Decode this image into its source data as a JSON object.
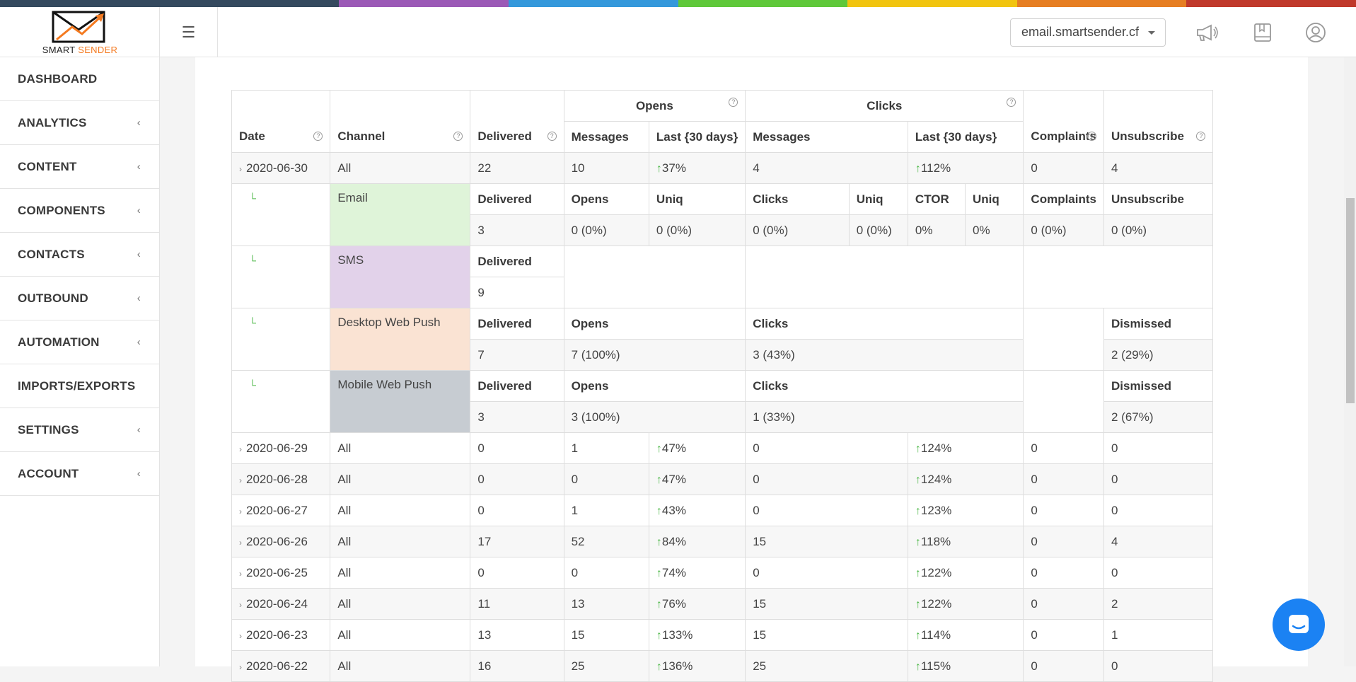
{
  "colors": {
    "accent": "#f47a20",
    "green": "#4db848",
    "chat": "#1b82f3",
    "stripe": [
      "#34495e",
      "#34495e",
      "#9b59b6",
      "#3498db",
      "#5fc83a",
      "#f1c40f",
      "#e67e22",
      "#c0392b"
    ]
  },
  "logo": {
    "brand_part1": "SMART",
    "brand_part2": "SENDER"
  },
  "header": {
    "domain": "email.smartsender.cf",
    "icons": [
      "megaphone-icon",
      "book-icon",
      "user-icon"
    ]
  },
  "sidebar": {
    "items": [
      {
        "label": "DASHBOARD",
        "chevron": false
      },
      {
        "label": "ANALYTICS",
        "chevron": true
      },
      {
        "label": "CONTENT",
        "chevron": true
      },
      {
        "label": "COMPONENTS",
        "chevron": true
      },
      {
        "label": "CONTACTS",
        "chevron": true
      },
      {
        "label": "OUTBOUND",
        "chevron": true
      },
      {
        "label": "AUTOMATION",
        "chevron": true
      },
      {
        "label": "IMPORTS/EXPORTS",
        "chevron": false
      },
      {
        "label": "SETTINGS",
        "chevron": true
      },
      {
        "label": "ACCOUNT",
        "chevron": true
      }
    ]
  },
  "table": {
    "headers": {
      "date": "Date",
      "channel": "Channel",
      "delivered": "Delivered",
      "opens": "Opens",
      "clicks": "Clicks",
      "messages": "Messages",
      "last30": "Last {30 days}",
      "complaints": "Complaints",
      "unsubscribe": "Unsubscribe"
    },
    "first_row": {
      "date": "2020-06-30",
      "channel": "All",
      "delivered": "22",
      "opens_messages": "10",
      "opens_last": "37%",
      "clicks_messages": "4",
      "clicks_last": "112%",
      "complaints": "0",
      "unsubscribe": "4"
    },
    "email": {
      "name": "Email",
      "labels": {
        "delivered": "Delivered",
        "opens": "Opens",
        "uniq": "Uniq",
        "clicks": "Clicks",
        "ctor": "CTOR",
        "complaints": "Complaints",
        "unsubscribe": "Unsubscribe"
      },
      "values": {
        "delivered": "3",
        "opens": "0 (0%)",
        "opens_uniq": "0 (0%)",
        "clicks": "0 (0%)",
        "clicks_uniq": "0 (0%)",
        "ctor": "0%",
        "ctor_uniq": "0%",
        "complaints": "0 (0%)",
        "unsubscribe": "0 (0%)"
      }
    },
    "sms": {
      "name": "SMS",
      "label": "Delivered",
      "delivered": "9"
    },
    "desktop": {
      "name": "Desktop Web Push",
      "labels": {
        "delivered": "Delivered",
        "opens": "Opens",
        "clicks": "Clicks",
        "dismissed": "Dismissed"
      },
      "values": {
        "delivered": "7",
        "opens": "7 (100%)",
        "clicks": "3 (43%)",
        "dismissed": "2 (29%)"
      }
    },
    "mobile": {
      "name": "Mobile Web Push",
      "labels": {
        "delivered": "Delivered",
        "opens": "Opens",
        "clicks": "Clicks",
        "dismissed": "Dismissed"
      },
      "values": {
        "delivered": "3",
        "opens": "3 (100%)",
        "clicks": "1 (33%)",
        "dismissed": "2 (67%)"
      }
    },
    "rows": [
      {
        "date": "2020-06-29",
        "channel": "All",
        "delivered": "0",
        "opens": "1",
        "opens_last": "47%",
        "clicks": "0",
        "clicks_last": "124%",
        "complaints": "0",
        "unsubscribe": "0"
      },
      {
        "date": "2020-06-28",
        "channel": "All",
        "delivered": "0",
        "opens": "0",
        "opens_last": "47%",
        "clicks": "0",
        "clicks_last": "124%",
        "complaints": "0",
        "unsubscribe": "0"
      },
      {
        "date": "2020-06-27",
        "channel": "All",
        "delivered": "0",
        "opens": "1",
        "opens_last": "43%",
        "clicks": "0",
        "clicks_last": "123%",
        "complaints": "0",
        "unsubscribe": "0"
      },
      {
        "date": "2020-06-26",
        "channel": "All",
        "delivered": "17",
        "opens": "52",
        "opens_last": "84%",
        "clicks": "15",
        "clicks_last": "118%",
        "complaints": "0",
        "unsubscribe": "4"
      },
      {
        "date": "2020-06-25",
        "channel": "All",
        "delivered": "0",
        "opens": "0",
        "opens_last": "74%",
        "clicks": "0",
        "clicks_last": "122%",
        "complaints": "0",
        "unsubscribe": "0"
      },
      {
        "date": "2020-06-24",
        "channel": "All",
        "delivered": "11",
        "opens": "13",
        "opens_last": "76%",
        "clicks": "15",
        "clicks_last": "122%",
        "complaints": "0",
        "unsubscribe": "2"
      },
      {
        "date": "2020-06-23",
        "channel": "All",
        "delivered": "13",
        "opens": "15",
        "opens_last": "133%",
        "clicks": "15",
        "clicks_last": "114%",
        "complaints": "0",
        "unsubscribe": "1"
      },
      {
        "date": "2020-06-22",
        "channel": "All",
        "delivered": "16",
        "opens": "25",
        "opens_last": "136%",
        "clicks": "25",
        "clicks_last": "115%",
        "complaints": "0",
        "unsubscribe": "0"
      }
    ]
  }
}
